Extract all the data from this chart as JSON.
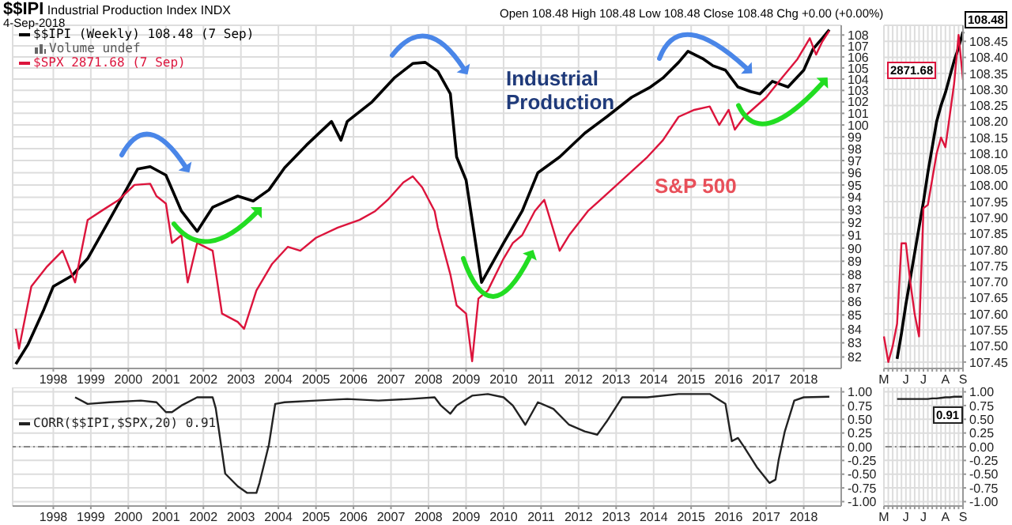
{
  "chart_data": [
    {
      "type": "line",
      "title": "$$IPI Industrial Production Index INDX",
      "subtitle": "4-Sep-2018",
      "annotations": [
        "Open 108.48 High 108.48 Low 108.48 Close 108.48 Chg +0.00 (+0.00%)",
        "Volume undef",
        "Industrial Production",
        "S&P 500"
      ],
      "series": [
        {
          "name": "$$IPI (Weekly) 108.48 (7 Sep)",
          "color": "#000000",
          "x": [
            "1997-01",
            "1997-05",
            "1997-10",
            "1998-01",
            "1998-07",
            "1998-12",
            "1999-07",
            "2000-04",
            "2000-08",
            "2001-01",
            "2001-06",
            "2001-11",
            "2002-04",
            "2002-12",
            "2003-05",
            "2003-10",
            "2004-03",
            "2004-10",
            "2005-06",
            "2005-09",
            "2005-11",
            "2006-07",
            "2007-02",
            "2007-08",
            "2007-12",
            "2008-04",
            "2008-08",
            "2008-10",
            "2009-01",
            "2009-06",
            "2010-01",
            "2010-07",
            "2010-12",
            "2011-07",
            "2012-03",
            "2012-10",
            "2013-06",
            "2013-12",
            "2014-04",
            "2014-09",
            "2014-12",
            "2015-05",
            "2015-08",
            "2015-12",
            "2016-04",
            "2016-08",
            "2016-11",
            "2017-03",
            "2017-08",
            "2018-01",
            "2018-04",
            "2018-07",
            "2018-09-07"
          ],
          "values": [
            81.5,
            82.9,
            85.4,
            87.1,
            87.9,
            89.2,
            92.2,
            96.3,
            96.5,
            95.8,
            92.9,
            91.3,
            93.2,
            94.1,
            93.7,
            94.6,
            96.4,
            98.3,
            100.3,
            98.7,
            100.3,
            102.0,
            104.1,
            105.4,
            105.5,
            104.7,
            102.7,
            97.3,
            95.4,
            87.4,
            90.4,
            92.9,
            96.0,
            97.3,
            99.3,
            100.7,
            102.4,
            103.3,
            104.1,
            105.5,
            106.5,
            105.8,
            105.2,
            104.8,
            103.3,
            102.9,
            102.7,
            103.8,
            103.3,
            104.8,
            106.7,
            107.7,
            108.48
          ]
        },
        {
          "name": "$SPX 2871.68 (7 Sep)",
          "color": "#dc143c",
          "x": [
            "1997-01",
            "1997-02",
            "1997-06",
            "1997-11",
            "1998-04",
            "1998-08",
            "1998-12",
            "1999-05",
            "1999-10",
            "2000-03",
            "2000-08",
            "2000-10",
            "2001-01",
            "2001-03",
            "2001-06",
            "2001-08",
            "2001-11",
            "2002-04",
            "2002-07",
            "2002-12",
            "2003-02",
            "2003-06",
            "2003-11",
            "2004-04",
            "2004-08",
            "2005-01",
            "2005-08",
            "2006-03",
            "2006-08",
            "2006-12",
            "2007-05",
            "2007-08",
            "2007-11",
            "2008-03",
            "2008-04",
            "2008-08",
            "2008-10",
            "2009-01",
            "2009-03",
            "2009-05",
            "2009-08",
            "2010-01",
            "2010-04",
            "2010-07",
            "2010-11",
            "2011-02",
            "2011-07",
            "2011-10",
            "2012-04",
            "2012-08",
            "2013-03",
            "2013-11",
            "2014-04",
            "2014-09",
            "2015-02",
            "2015-07",
            "2015-10",
            "2016-01",
            "2016-03",
            "2016-06",
            "2017-01",
            "2017-06",
            "2017-11",
            "2018-03",
            "2018-05",
            "2018-07",
            "2018-09-07"
          ],
          "values": [
            84.0,
            82.6,
            87.1,
            88.6,
            89.8,
            87.4,
            92.2,
            93.0,
            93.8,
            95.0,
            95.1,
            94.1,
            93.5,
            90.4,
            91.0,
            87.4,
            90.4,
            89.8,
            85.1,
            84.5,
            84.0,
            86.8,
            88.8,
            90.1,
            89.8,
            90.8,
            91.6,
            92.2,
            92.9,
            93.8,
            95.2,
            95.7,
            94.8,
            92.9,
            91.6,
            88.0,
            85.7,
            85.1,
            81.7,
            86.2,
            86.8,
            89.2,
            90.4,
            91.0,
            92.9,
            93.8,
            89.8,
            91.0,
            92.9,
            93.8,
            95.4,
            97.3,
            98.7,
            100.7,
            101.3,
            101.6,
            100.0,
            101.3,
            99.6,
            100.7,
            102.4,
            104.1,
            105.8,
            107.7,
            106.2,
            107.4,
            108.4
          ]
        }
      ],
      "xlim": [
        "1996-12",
        "2019-01"
      ],
      "xticks": [
        {
          "value": "1998-01-01",
          "label": "1998"
        },
        {
          "value": "1999-01-01",
          "label": "1999"
        },
        {
          "value": "2000-01-01",
          "label": "2000"
        },
        {
          "value": "2001-01-01",
          "label": "2001"
        },
        {
          "value": "2002-01-01",
          "label": "2002"
        },
        {
          "value": "2003-01-01",
          "label": "2003"
        },
        {
          "value": "2004-01-01",
          "label": "2004"
        },
        {
          "value": "2005-01-01",
          "label": "2005"
        },
        {
          "value": "2006-01-01",
          "label": "2006"
        },
        {
          "value": "2007-01-01",
          "label": "2007"
        },
        {
          "value": "2008-01-01",
          "label": "2008"
        },
        {
          "value": "2009-01-01",
          "label": "2009"
        },
        {
          "value": "2010-01-01",
          "label": "2010"
        },
        {
          "value": "2011-01-01",
          "label": "2011"
        },
        {
          "value": "2012-01-01",
          "label": "2012"
        },
        {
          "value": "2013-01-01",
          "label": "2013"
        },
        {
          "value": "2014-01-01",
          "label": "2014"
        },
        {
          "value": "2015-01-01",
          "label": "2015"
        },
        {
          "value": "2016-01-01",
          "label": "2016"
        },
        {
          "value": "2017-01-01",
          "label": "2017"
        },
        {
          "value": "2018-01-01",
          "label": "2018"
        }
      ],
      "ylim": [
        81.2,
        108.9
      ],
      "yticks": [
        82,
        83,
        84,
        85,
        86,
        87,
        88,
        89,
        90,
        91,
        92,
        93,
        94,
        95,
        96,
        97,
        98,
        99,
        100,
        101,
        102,
        103,
        104,
        105,
        106,
        107,
        108
      ],
      "log": true,
      "grid": true,
      "legend": "top left"
    },
    {
      "type": "line",
      "series": [
        {
          "name": "CORR($$IPI,$SPX,20) 0.91",
          "color": "#222222",
          "x": [
            "1998-08",
            "1998-12",
            "1999-07",
            "2000-05",
            "2000-10",
            "2001-01",
            "2001-03",
            "2001-06",
            "2001-11",
            "2002-04",
            "2002-05",
            "2002-08",
            "2002-12",
            "2003-03",
            "2003-06",
            "2003-07",
            "2003-10",
            "2003-12",
            "2004-03",
            "2005-01",
            "2005-11",
            "2006-09",
            "2007-07",
            "2008-03",
            "2008-05",
            "2008-08",
            "2008-10",
            "2009-03",
            "2009-08",
            "2010-01",
            "2010-04",
            "2010-08",
            "2010-12",
            "2011-05",
            "2011-10",
            "2012-03",
            "2012-07",
            "2012-10",
            "2013-03",
            "2013-11",
            "2014-09",
            "2015-07",
            "2015-12",
            "2016-02",
            "2016-04",
            "2016-06",
            "2016-10",
            "2017-02",
            "2017-04",
            "2017-05",
            "2017-07",
            "2017-10",
            "2018-01",
            "2018-09-07"
          ],
          "values": [
            0.9,
            0.78,
            0.81,
            0.84,
            0.81,
            0.63,
            0.63,
            0.75,
            0.9,
            0.9,
            0.7,
            -0.49,
            -0.72,
            -0.84,
            -0.84,
            -0.66,
            0.04,
            0.78,
            0.81,
            0.84,
            0.87,
            0.84,
            0.87,
            0.9,
            0.75,
            0.6,
            0.75,
            0.93,
            0.96,
            0.9,
            0.75,
            0.4,
            0.81,
            0.69,
            0.4,
            0.28,
            0.22,
            0.46,
            0.9,
            0.9,
            0.96,
            0.96,
            0.78,
            0.1,
            0.16,
            -0.01,
            -0.37,
            -0.66,
            -0.6,
            -0.25,
            0.28,
            0.84,
            0.9,
            0.91
          ]
        }
      ],
      "xlim": [
        "1996-12",
        "2019-01"
      ],
      "xticks": [
        {
          "value": "1998-01-01",
          "label": "1998"
        },
        {
          "value": "1999-01-01",
          "label": "1999"
        },
        {
          "value": "2000-01-01",
          "label": "2000"
        },
        {
          "value": "2001-01-01",
          "label": "2001"
        },
        {
          "value": "2002-01-01",
          "label": "2002"
        },
        {
          "value": "2003-01-01",
          "label": "2003"
        },
        {
          "value": "2004-01-01",
          "label": "2004"
        },
        {
          "value": "2005-01-01",
          "label": "2005"
        },
        {
          "value": "2006-01-01",
          "label": "2006"
        },
        {
          "value": "2007-01-01",
          "label": "2007"
        },
        {
          "value": "2008-01-01",
          "label": "2008"
        },
        {
          "value": "2009-01-01",
          "label": "2009"
        },
        {
          "value": "2010-01-01",
          "label": "2010"
        },
        {
          "value": "2011-01-01",
          "label": "2011"
        },
        {
          "value": "2012-01-01",
          "label": "2012"
        },
        {
          "value": "2013-01-01",
          "label": "2013"
        },
        {
          "value": "2014-01-01",
          "label": "2014"
        },
        {
          "value": "2015-01-01",
          "label": "2015"
        },
        {
          "value": "2016-01-01",
          "label": "2016"
        },
        {
          "value": "2017-01-01",
          "label": "2017"
        },
        {
          "value": "2018-01-01",
          "label": "2018"
        }
      ],
      "ylim": [
        -1.08,
        1.08
      ],
      "yticks": [
        {
          "value": 1,
          "label": "1.00"
        },
        {
          "value": 0.75,
          "label": "0.75"
        },
        {
          "value": 0.5,
          "label": "0.50"
        },
        {
          "value": 0.25,
          "label": "0.25"
        },
        {
          "value": 0,
          "label": "0.00"
        },
        {
          "value": -0.25,
          "label": "-0.25"
        },
        {
          "value": -0.5,
          "label": "-0.50"
        },
        {
          "value": -0.75,
          "label": "-0.75"
        },
        {
          "value": -1,
          "label": "-1.00"
        }
      ],
      "ref_lines": [
        {
          "axis": "y",
          "value": 0,
          "line_style": "dashed",
          "color": "#888888"
        }
      ],
      "grid": true,
      "legend": "top left"
    },
    {
      "type": "line",
      "annotations": [
        "108.48",
        "2871.68"
      ],
      "categories": [
        "M",
        null,
        null,
        null,
        null,
        "J",
        null,
        null,
        null,
        "J",
        null,
        null,
        null,
        null,
        "A",
        null,
        null,
        null,
        "S"
      ],
      "series": [
        {
          "color": "#000000",
          "values": [
            null,
            null,
            null,
            107.46,
            107.54,
            107.63,
            107.71,
            107.79,
            107.87,
            107.95,
            108.04,
            108.12,
            108.2,
            108.25,
            108.29,
            108.34,
            108.39,
            108.43,
            108.48
          ]
        },
        {
          "color": "#dc143c",
          "values": [
            107.53,
            107.45,
            107.5,
            107.57,
            107.82,
            107.82,
            107.7,
            107.6,
            107.53,
            107.93,
            107.94,
            108.02,
            108.1,
            108.15,
            108.12,
            108.22,
            108.32,
            108.47,
            108.33
          ]
        }
      ],
      "ylim": [
        107.43,
        108.5
      ],
      "yticks": [
        {
          "value": 107.45,
          "label": "107.45"
        },
        {
          "value": 107.5,
          "label": "107.50"
        },
        {
          "value": 107.55,
          "label": "107.55"
        },
        {
          "value": 107.6,
          "label": "107.60"
        },
        {
          "value": 107.65,
          "label": "107.65"
        },
        {
          "value": 107.7,
          "label": "107.70"
        },
        {
          "value": 107.75,
          "label": "107.75"
        },
        {
          "value": 107.8,
          "label": "107.80"
        },
        {
          "value": 107.85,
          "label": "107.85"
        },
        {
          "value": 107.9,
          "label": "107.90"
        },
        {
          "value": 107.95,
          "label": "107.95"
        },
        {
          "value": 108,
          "label": "108.00"
        },
        {
          "value": 108.05,
          "label": "108.05"
        },
        {
          "value": 108.1,
          "label": "108.10"
        },
        {
          "value": 108.15,
          "label": "108.15"
        },
        {
          "value": 108.2,
          "label": "108.20"
        },
        {
          "value": 108.25,
          "label": "108.25"
        },
        {
          "value": 108.3,
          "label": "108.30"
        },
        {
          "value": 108.35,
          "label": "108.35"
        },
        {
          "value": 108.4,
          "label": "108.40"
        },
        {
          "value": 108.45,
          "label": "108.45"
        }
      ],
      "grid": true
    },
    {
      "type": "line",
      "annotations": [
        "0.91"
      ],
      "categories": [
        "M",
        null,
        null,
        null,
        null,
        "J",
        null,
        null,
        null,
        "J",
        null,
        null,
        null,
        null,
        "A",
        null,
        null,
        null,
        "S"
      ],
      "series": [
        {
          "color": "#222222",
          "values": [
            null,
            null,
            null,
            0.87,
            0.87,
            0.87,
            0.87,
            0.87,
            0.87,
            0.87,
            0.87,
            0.88,
            0.88,
            0.89,
            0.9,
            0.9,
            0.91,
            0.91,
            0.91
          ]
        }
      ],
      "ylim": [
        -1.08,
        1.08
      ],
      "yticks": [
        {
          "value": 1,
          "label": "1.00"
        },
        {
          "value": 0.75,
          "label": "0.75"
        },
        {
          "value": 0.5,
          "label": "0.50"
        },
        {
          "value": 0.25,
          "label": "0.25"
        },
        {
          "value": 0,
          "label": "0.00"
        },
        {
          "value": -0.25,
          "label": "-0.25"
        },
        {
          "value": -0.5,
          "label": "-0.50"
        },
        {
          "value": -0.75,
          "label": "-0.75"
        },
        {
          "value": -1,
          "label": "-1.00"
        }
      ],
      "ref_lines": [
        {
          "axis": "y",
          "value": 0,
          "line_style": "dashed",
          "color": "#888888"
        }
      ],
      "grid": true
    }
  ]
}
